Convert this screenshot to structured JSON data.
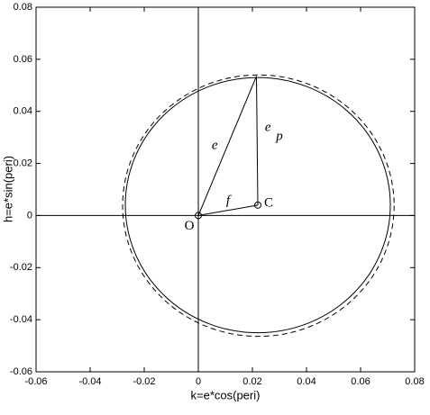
{
  "chart_data": {
    "type": "circles",
    "xlabel": "k=e*cos(peri)",
    "ylabel": "h=e*sin(peri)",
    "xlim": [
      -0.06,
      0.08
    ],
    "ylim": [
      -0.06,
      0.08
    ],
    "xticks": [
      -0.06,
      -0.04,
      -0.02,
      0,
      0.02,
      0.04,
      0.06,
      0.08
    ],
    "yticks": [
      -0.06,
      -0.04,
      -0.02,
      0,
      0.02,
      0.04,
      0.06,
      0.08
    ],
    "color": "#000000",
    "circles": [
      {
        "style": "solid",
        "center": [
          0.022,
          0.004
        ],
        "radius": 0.049
      },
      {
        "style": "dashed",
        "center": [
          0.0222,
          0.0038
        ],
        "radius": 0.0502
      }
    ],
    "segments": [
      {
        "label": "e",
        "x": [
          0,
          0.0215
        ],
        "y": [
          0,
          0.0535
        ]
      },
      {
        "label": "e",
        "subscript": "p",
        "x": [
          0.0215,
          0.022
        ],
        "y": [
          0.0535,
          0.004
        ]
      },
      {
        "label": "f",
        "x": [
          0,
          0.022
        ],
        "y": [
          0,
          0.004
        ]
      }
    ],
    "points": [
      {
        "label": "O",
        "x": 0,
        "y": 0
      },
      {
        "label": "C",
        "x": 0.022,
        "y": 0.004
      }
    ]
  }
}
